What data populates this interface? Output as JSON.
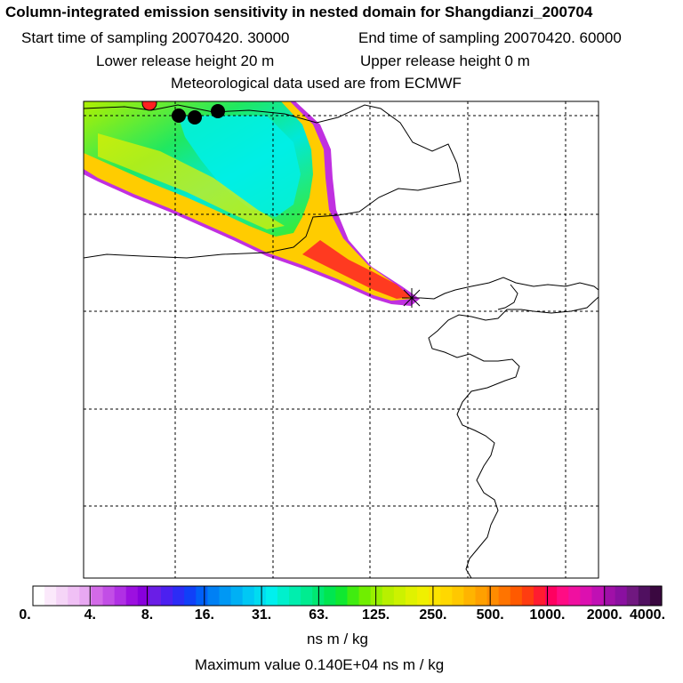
{
  "header": {
    "title": "Column-integrated emission sensitivity in nested domain for Shangdianzi_200704",
    "start_time": "Start time of sampling 20070420. 30000",
    "end_time": "End time of sampling 20070420. 60000",
    "lower_release": "Lower release height   20 m",
    "upper_release": "Upper release height    0 m",
    "met_data": "Meteorological data used are from ECMWF"
  },
  "chart_data": {
    "type": "heatmap",
    "title": "Column-integrated emission sensitivity in nested domain for Shangdianzi_200704",
    "units": "ns m / kg",
    "max_value_text": "Maximum value  0.140E+04 ns m / kg",
    "colorbar_ticks": [
      "0.",
      "4.",
      "8.",
      "16.",
      "31.",
      "63.",
      "125.",
      "250.",
      "500.",
      "1000.",
      "2000.",
      "4000."
    ],
    "colorbar_colors": [
      "#ffffff",
      "#fbe9fb",
      "#f5d5f7",
      "#f0c0f5",
      "#e8a8f2",
      "#d36ae8",
      "#c24ee6",
      "#b030e4",
      "#9c10e0",
      "#8800dc",
      "#6a1ee6",
      "#4c20f0",
      "#2c2cf6",
      "#1040f8",
      "#0060f8",
      "#0080f4",
      "#0098f4",
      "#00b0f4",
      "#00c8f4",
      "#00dcf0",
      "#00f0ee",
      "#00f0cc",
      "#00eeae",
      "#00ec90",
      "#00e872",
      "#00e650",
      "#10e830",
      "#40ec10",
      "#70ee00",
      "#98f000",
      "#b8f000",
      "#ccf200",
      "#e0f200",
      "#f0f000",
      "#fce400",
      "#ffd800",
      "#ffc800",
      "#ffb400",
      "#ffa000",
      "#ff8c00",
      "#ff7400",
      "#ff5a00",
      "#ff3c10",
      "#ff1c30",
      "#ff0060",
      "#ff0c84",
      "#f010a0",
      "#dc10b0",
      "#c010b4",
      "#a010a8",
      "#8a10a0",
      "#701880",
      "#501060",
      "#3a0840"
    ],
    "receptor_marker": "station (star/cross)",
    "release_points": [
      "red dot",
      "black dot",
      "black dot",
      "black dot"
    ]
  }
}
